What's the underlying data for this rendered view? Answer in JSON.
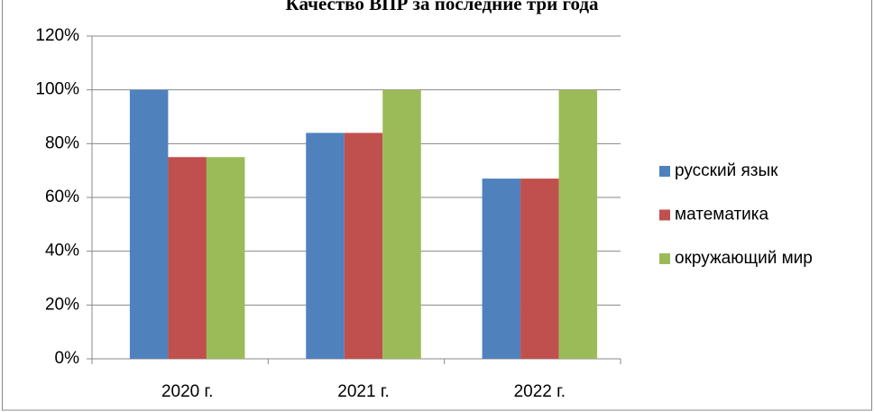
{
  "chart_data": {
    "type": "bar",
    "title": "Качество ВПР за последние три года",
    "categories": [
      "2020 г.",
      "2021 г.",
      "2022 г."
    ],
    "series": [
      {
        "name": "русский язык",
        "color": "#4f81bd",
        "values": [
          100,
          84,
          67
        ]
      },
      {
        "name": "математика",
        "color": "#c0504d",
        "values": [
          75,
          84,
          67
        ]
      },
      {
        "name": "окружающий мир",
        "color": "#9bbb59",
        "values": [
          75,
          100,
          100
        ]
      }
    ],
    "ylim": [
      0,
      120
    ],
    "yticks": [
      {
        "value": 0,
        "label": "0%"
      },
      {
        "value": 20,
        "label": "20%"
      },
      {
        "value": 40,
        "label": "40%"
      },
      {
        "value": 60,
        "label": "60%"
      },
      {
        "value": 80,
        "label": "80%"
      },
      {
        "value": 100,
        "label": "100%"
      },
      {
        "value": 120,
        "label": "120%"
      }
    ],
    "grid": true,
    "legend": "right"
  }
}
